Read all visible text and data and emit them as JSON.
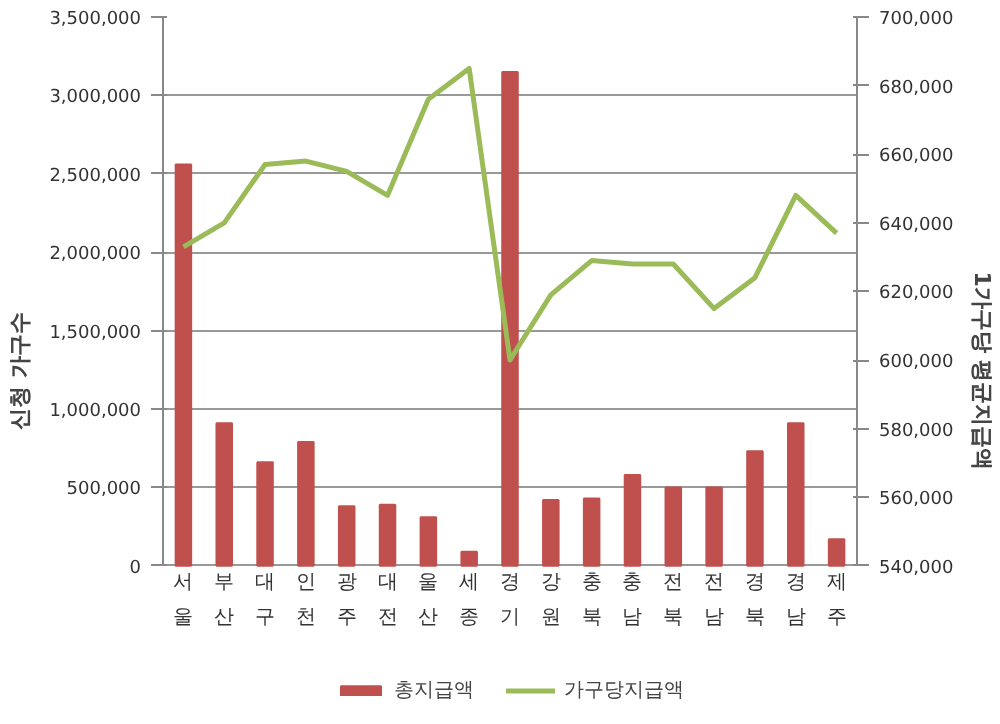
{
  "chart_data": {
    "type": "bar",
    "ylabel": "신청 가구수",
    "y2label": "1가구당 평균지급액",
    "categories": [
      "서울",
      "부산",
      "대구",
      "인천",
      "광주",
      "대전",
      "울산",
      "세종",
      "경기",
      "강원",
      "충북",
      "충남",
      "전북",
      "전남",
      "경북",
      "경남",
      "제주"
    ],
    "series": [
      {
        "name": "총지급액",
        "color": "#c0504d",
        "values": [
          2560000,
          910000,
          660000,
          790000,
          380000,
          390000,
          310000,
          90000,
          3150000,
          420000,
          430000,
          580000,
          500000,
          500000,
          730000,
          910000,
          170000
        ]
      },
      {
        "name": "가구당지급액",
        "type": "line",
        "axis": "y2",
        "color": "#9bbb59",
        "values": [
          633000,
          640000,
          657000,
          658000,
          655000,
          648000,
          676000,
          685000,
          600000,
          619000,
          629000,
          628000,
          628000,
          615000,
          624000,
          648000,
          637000
        ]
      }
    ],
    "ylim": [
      0,
      3500000
    ],
    "yticks": [
      {
        "value": 0,
        "label": "0"
      },
      {
        "value": 500000,
        "label": "500,000"
      },
      {
        "value": 1000000,
        "label": "1,000,000"
      },
      {
        "value": 1500000,
        "label": "1,500,000"
      },
      {
        "value": 2000000,
        "label": "2,000,000"
      },
      {
        "value": 2500000,
        "label": "2,500,000"
      },
      {
        "value": 3000000,
        "label": "3,000,000"
      },
      {
        "value": 3500000,
        "label": "3,500,000"
      }
    ],
    "y2lim": [
      540000,
      700000
    ],
    "y2ticks": [
      {
        "value": 540000,
        "label": "540,000"
      },
      {
        "value": 560000,
        "label": "560,000"
      },
      {
        "value": 580000,
        "label": "580,000"
      },
      {
        "value": 600000,
        "label": "600,000"
      },
      {
        "value": 620000,
        "label": "620,000"
      },
      {
        "value": 640000,
        "label": "640,000"
      },
      {
        "value": 660000,
        "label": "660,000"
      },
      {
        "value": 680000,
        "label": "680,000"
      },
      {
        "value": 700000,
        "label": "700,000"
      }
    ],
    "grid": "y",
    "legend": "bottom"
  }
}
